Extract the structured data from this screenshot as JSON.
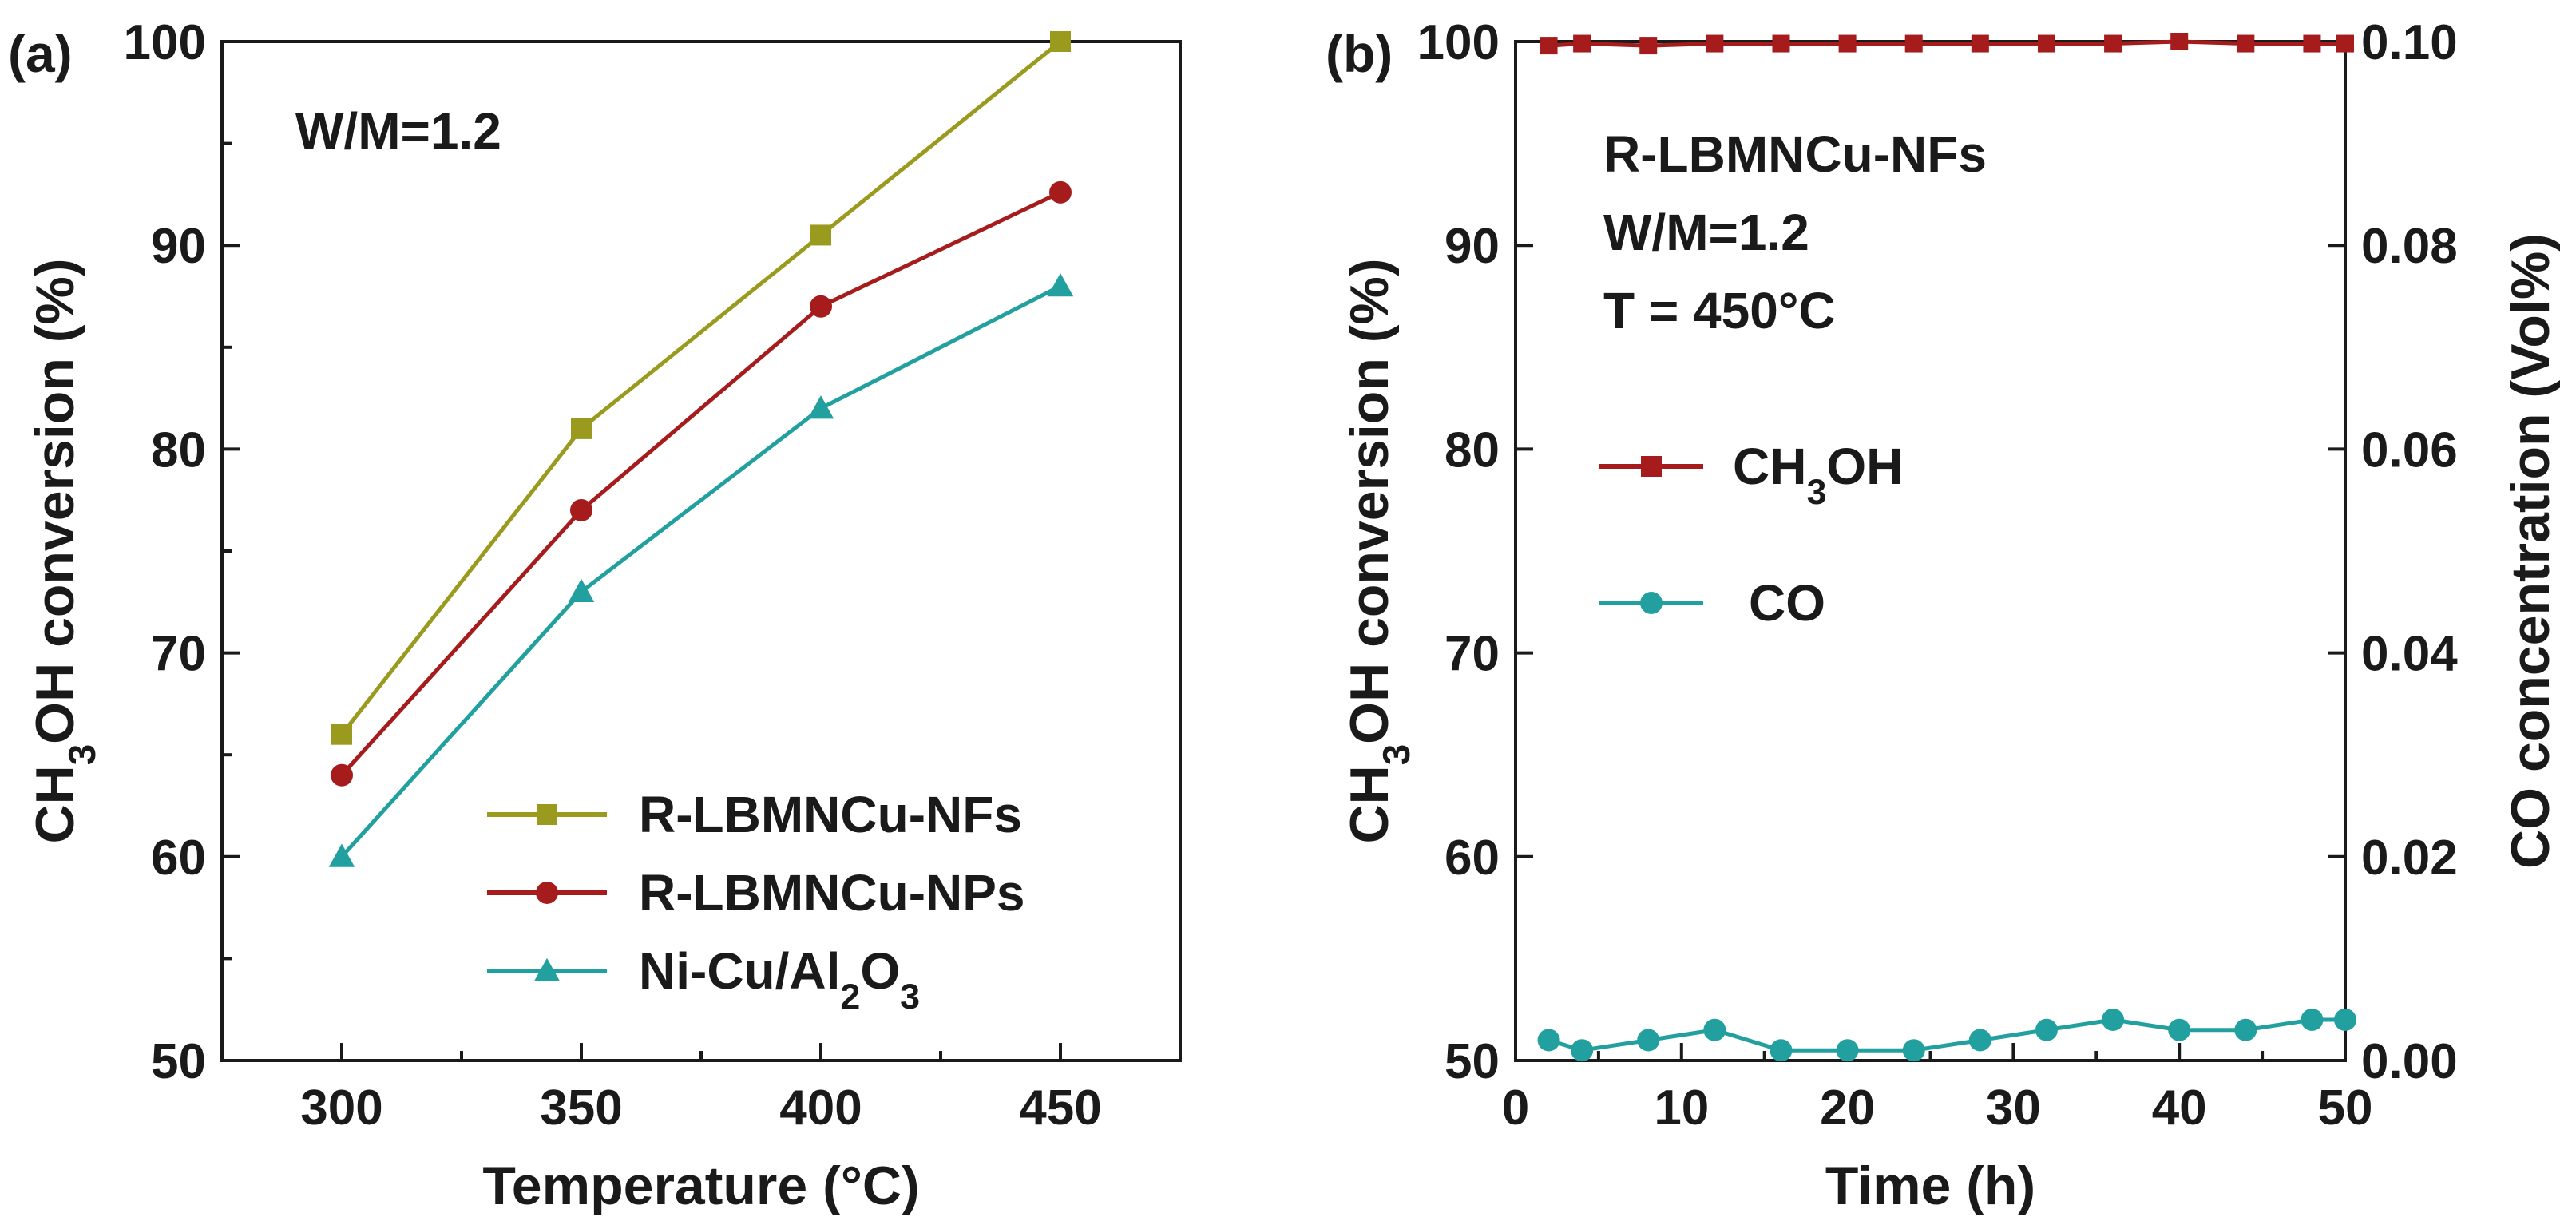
{
  "chart_data": [
    {
      "type": "line",
      "panel_label": "(a)",
      "annotation": "W/M=1.2",
      "xlabel": "Temperature (°C)",
      "ylabel": {
        "pre": "CH",
        "sub": "3",
        "post": "OH conversion (%)"
      },
      "xlim": [
        275,
        475
      ],
      "ylim": [
        50,
        100
      ],
      "xticks": [
        300,
        350,
        400,
        450
      ],
      "yticks": [
        50,
        60,
        70,
        80,
        90,
        100
      ],
      "legend_position": "lower-right",
      "x": [
        300,
        350,
        400,
        450
      ],
      "series": [
        {
          "name": "R-LBMNCu-NFs",
          "color": "#9a9a1e",
          "marker": "square",
          "values": [
            66,
            81,
            90.5,
            100
          ]
        },
        {
          "name": "R-LBMNCu-NPs",
          "color": "#a61c1c",
          "marker": "circle",
          "values": [
            64,
            77,
            87,
            92.6
          ]
        },
        {
          "name": "Ni-Cu/Al2O3",
          "legend_label": {
            "pre": "Ni-Cu/Al",
            "sub1": "2",
            "mid": "O",
            "sub2": "3"
          },
          "color": "#22a0a0",
          "marker": "triangle",
          "values": [
            60,
            73,
            82,
            88
          ]
        }
      ]
    },
    {
      "type": "line",
      "panel_label": "(b)",
      "annotations": [
        "R-LBMNCu-NFs",
        "W/M=1.2",
        "T = 450°C"
      ],
      "xlabel": "Time (h)",
      "ylabel_left": {
        "pre": "CH",
        "sub": "3",
        "post": "OH conversion (%)"
      },
      "ylabel_right": "CO concentration (Vol%)",
      "xlim": [
        0,
        50
      ],
      "ylim_left": [
        50,
        100
      ],
      "ylim_right": [
        0,
        0.1
      ],
      "xticks": [
        0,
        10,
        20,
        30,
        40,
        50
      ],
      "yticks_left": [
        50,
        60,
        70,
        80,
        90,
        100
      ],
      "yticks_right": [
        "0.00",
        "0.02",
        "0.04",
        "0.06",
        "0.08",
        "0.10"
      ],
      "legend_position": "middle-left",
      "series": [
        {
          "name": "CH3OH",
          "legend_label": {
            "pre": "CH",
            "sub": "3",
            "post": "OH"
          },
          "axis": "left",
          "color": "#a61c1c",
          "marker": "square",
          "x": [
            2,
            4,
            8,
            12,
            16,
            20,
            24,
            28,
            32,
            36,
            40,
            44,
            48,
            50
          ],
          "values": [
            99.8,
            99.9,
            99.8,
            99.9,
            99.9,
            99.9,
            99.9,
            99.9,
            99.9,
            99.9,
            100,
            99.9,
            99.9,
            99.9
          ]
        },
        {
          "name": "CO",
          "axis": "right",
          "color": "#22a0a0",
          "marker": "circle",
          "x": [
            2,
            4,
            8,
            12,
            16,
            20,
            24,
            28,
            32,
            36,
            40,
            44,
            48,
            50
          ],
          "values": [
            0.002,
            0.001,
            0.002,
            0.003,
            0.001,
            0.001,
            0.001,
            0.002,
            0.003,
            0.004,
            0.003,
            0.003,
            0.004,
            0.004
          ]
        }
      ]
    }
  ]
}
